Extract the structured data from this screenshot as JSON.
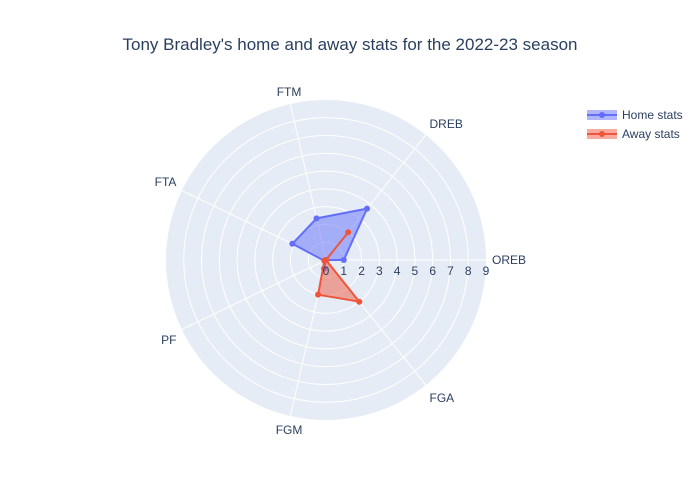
{
  "chart_data": {
    "type": "radar",
    "title": "Tony Bradley's home and away stats for the 2022-23 season",
    "categories": [
      "OREB",
      "DREB",
      "FTM",
      "FTA",
      "PF",
      "FGM",
      "FGA"
    ],
    "radial_range": [
      0,
      9
    ],
    "radial_ticks": [
      "0",
      "1",
      "2",
      "3",
      "4",
      "5",
      "6",
      "7",
      "8",
      "9"
    ],
    "legend_position": "top-right",
    "grid": true,
    "series": [
      {
        "name": "Home stats",
        "color": "#636efa",
        "values": [
          1.0,
          3.7,
          2.4,
          2.1,
          0.1,
          0.5,
          0.0
        ]
      },
      {
        "name": "Away stats",
        "color": "#ef553b",
        "values": [
          0.0,
          2.0,
          0.0,
          0.0,
          0.1,
          2.0,
          3.0
        ]
      }
    ]
  }
}
